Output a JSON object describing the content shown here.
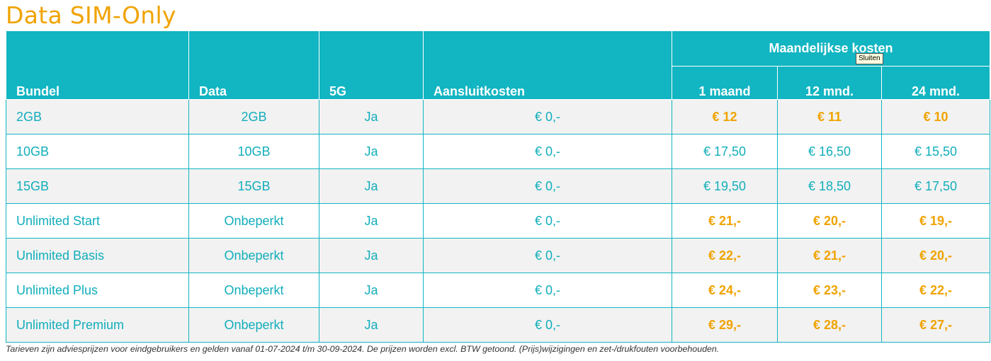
{
  "title": "Data SIM-Only",
  "table": {
    "headers": {
      "bundel": "Bundel",
      "data": "Data",
      "fiveg": "5G",
      "aansluitkosten": "Aansluitkosten",
      "group": "Maandelijkse kosten",
      "m1": "1 maand",
      "m12": "12 mnd.",
      "m24": "24 mnd."
    },
    "rows": [
      {
        "bundel": "2GB",
        "data": "2GB",
        "fiveg": "Ja",
        "aansluit": "€ 0,-",
        "m1": "€ 12",
        "m12": "€ 11",
        "m24": "€ 10",
        "highlight": true
      },
      {
        "bundel": "10GB",
        "data": "10GB",
        "fiveg": "Ja",
        "aansluit": "€ 0,-",
        "m1": "€ 17,50",
        "m12": "€ 16,50",
        "m24": "€ 15,50",
        "highlight": false
      },
      {
        "bundel": "15GB",
        "data": "15GB",
        "fiveg": "Ja",
        "aansluit": "€ 0,-",
        "m1": "€ 19,50",
        "m12": "€ 18,50",
        "m24": "€ 17,50",
        "highlight": false
      },
      {
        "bundel": "Unlimited Start",
        "data": "Onbeperkt",
        "fiveg": "Ja",
        "aansluit": "€ 0,-",
        "m1": "€ 21,-",
        "m12": "€ 20,-",
        "m24": "€ 19,-",
        "highlight": true
      },
      {
        "bundel": "Unlimited Basis",
        "data": "Onbeperkt",
        "fiveg": "Ja",
        "aansluit": "€ 0,-",
        "m1": "€ 22,-",
        "m12": "€ 21,-",
        "m24": "€ 20,-",
        "highlight": true
      },
      {
        "bundel": "Unlimited Plus",
        "data": "Onbeperkt",
        "fiveg": "Ja",
        "aansluit": "€ 0,-",
        "m1": "€ 24,-",
        "m12": "€ 23,-",
        "m24": "€ 22,-",
        "highlight": true
      },
      {
        "bundel": "Unlimited Premium",
        "data": "Onbeperkt",
        "fiveg": "Ja",
        "aansluit": "€ 0,-",
        "m1": "€ 29,-",
        "m12": "€ 28,-",
        "m24": "€ 27,-",
        "highlight": true
      }
    ]
  },
  "footnote": "Tarieven zijn adviesprijzen voor eindgebruikers en gelden vanaf 01-07-2024 t/m 30-09-2024. De prijzen worden excl. BTW getoond. (Prijs)wijzigingen en zet-/drukfouten voorbehouden.",
  "tooltip": "Sluiten",
  "colors": {
    "accent_teal": "#12b5c2",
    "highlight_orange": "#f0a300",
    "row_alt": "#f2f2f2"
  }
}
